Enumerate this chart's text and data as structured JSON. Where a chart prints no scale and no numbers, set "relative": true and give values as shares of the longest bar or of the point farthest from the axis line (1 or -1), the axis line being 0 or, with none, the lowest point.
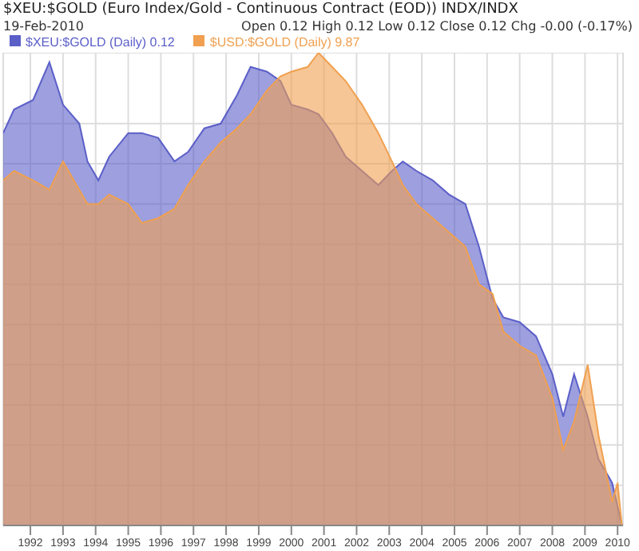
{
  "chart_data": {
    "type": "area",
    "title": "$XEU:$GOLD (Euro Index/Gold - Continuous Contract (EOD)) INDX/INDX",
    "subtitle": "19-Feb-2010",
    "annotations": [
      "Open 0.12 High 0.12 Low 0.12 Close 0.12 Chg -0.00 (-0.17%)"
    ],
    "relative": true,
    "x": [
      "1991-03",
      "1991-07",
      "1992-02",
      "1992-08",
      "1993-01",
      "1993-07",
      "1993-10",
      "1994-02",
      "1994-06",
      "1995-01",
      "1995-06",
      "1995-12",
      "1996-06",
      "1996-11",
      "1997-05",
      "1997-11",
      "1998-05",
      "1998-10",
      "1999-04",
      "1999-09",
      "2000-01",
      "2000-07",
      "2000-11",
      "2001-04",
      "2001-09",
      "2002-03",
      "2002-09",
      "2003-02",
      "2003-06",
      "2003-11",
      "2004-05",
      "2004-11",
      "2005-05",
      "2005-10",
      "2006-03",
      "2006-07",
      "2007-01",
      "2007-07",
      "2008-01",
      "2008-05",
      "2008-09",
      "2009-02",
      "2009-06",
      "2009-11",
      "2010-01",
      "2010-02-19"
    ],
    "series": [
      {
        "name": "$XEU:$GOLD (Daily) 0.12",
        "color": "#5b5fc8",
        "values": [
          0.83,
          0.88,
          0.9,
          0.98,
          0.89,
          0.85,
          0.77,
          0.73,
          0.78,
          0.83,
          0.83,
          0.82,
          0.77,
          0.79,
          0.84,
          0.85,
          0.91,
          0.97,
          0.96,
          0.94,
          0.89,
          0.88,
          0.87,
          0.83,
          0.78,
          0.75,
          0.72,
          0.75,
          0.77,
          0.75,
          0.73,
          0.7,
          0.68,
          0.59,
          0.48,
          0.44,
          0.43,
          0.4,
          0.32,
          0.23,
          0.32,
          0.23,
          0.14,
          0.09,
          0.04,
          0
        ]
      },
      {
        "name": "$USD:$GOLD (Daily) 9.87",
        "color": "#f0a050",
        "values": [
          0.73,
          0.75,
          0.73,
          0.71,
          0.77,
          0.71,
          0.68,
          0.68,
          0.7,
          0.68,
          0.64,
          0.65,
          0.67,
          0.72,
          0.77,
          0.81,
          0.84,
          0.87,
          0.92,
          0.95,
          0.96,
          0.97,
          1,
          0.97,
          0.94,
          0.89,
          0.83,
          0.77,
          0.72,
          0.68,
          0.65,
          0.62,
          0.59,
          0.51,
          0.49,
          0.41,
          0.38,
          0.36,
          0.27,
          0.16,
          0.22,
          0.34,
          0.19,
          0.05,
          0.09,
          0
        ]
      }
    ],
    "xlim": [
      "1991-03",
      "2010-03"
    ],
    "xticks": [
      "1992",
      "1993",
      "1994",
      "1995",
      "1996",
      "1997",
      "1998",
      "1999",
      "2000",
      "2001",
      "2002",
      "2003",
      "2004",
      "2005",
      "2006",
      "2007",
      "2008",
      "2009",
      "2010"
    ],
    "tick_labels": "x",
    "grid": true,
    "legend": "top left"
  }
}
